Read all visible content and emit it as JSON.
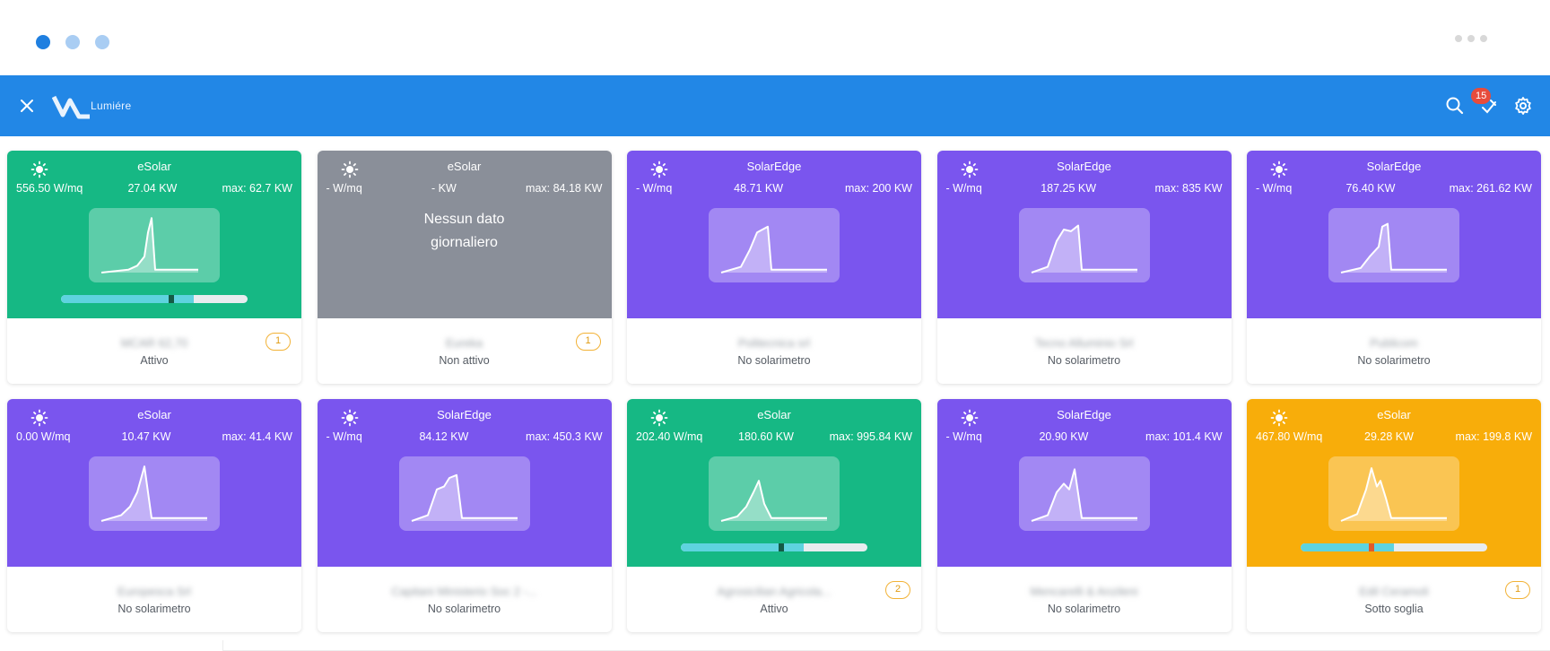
{
  "app": {
    "name": "Lumiére",
    "alert_count": "15"
  },
  "colors": {
    "green": "#16b884",
    "gray": "#8a8f99",
    "purple": "#7a55ee",
    "orange": "#f8ad0a",
    "accent": "#2287e6"
  },
  "cards": [
    {
      "provider": "eSolar",
      "irradiance": "556.50 W/mq",
      "power": "27.04 KW",
      "max": "max: 62.7 KW",
      "client": "MCAR 62,70",
      "status": "Attivo",
      "count": "1",
      "color": "green",
      "nodata": "",
      "progress": {
        "fill_pct": 59,
        "marker_color": "#145a44"
      },
      "curve": [
        [
          0,
          1
        ],
        [
          30,
          0.95
        ],
        [
          40,
          0.88
        ],
        [
          48,
          0.72
        ],
        [
          52,
          0.3
        ],
        [
          56,
          0.05
        ],
        [
          60,
          0.95
        ],
        [
          108,
          0.95
        ]
      ]
    },
    {
      "provider": "eSolar",
      "irradiance": "- W/mq",
      "power": "- KW",
      "max": "max: 84.18 KW",
      "client": "Eureka",
      "status": "Non attivo",
      "count": "1",
      "color": "gray",
      "nodata_line1": "Nessun dato",
      "nodata_line2": "giornaliero"
    },
    {
      "provider": "SolarEdge",
      "irradiance": "- W/mq",
      "power": "48.71 KW",
      "max": "max: 200 KW",
      "client": "Politecnica srl",
      "status": "No solarimetro",
      "count": "",
      "color": "purple",
      "curve": [
        [
          0,
          1
        ],
        [
          22,
          0.9
        ],
        [
          32,
          0.6
        ],
        [
          40,
          0.3
        ],
        [
          52,
          0.2
        ],
        [
          56,
          0.95
        ],
        [
          118,
          0.95
        ]
      ]
    },
    {
      "provider": "SolarEdge",
      "irradiance": "- W/mq",
      "power": "187.25 KW",
      "max": "max: 835 KW",
      "client": "Tecno Alluminio Srl",
      "status": "No solarimetro",
      "count": "",
      "color": "purple",
      "curve": [
        [
          0,
          1
        ],
        [
          18,
          0.9
        ],
        [
          28,
          0.45
        ],
        [
          36,
          0.25
        ],
        [
          44,
          0.28
        ],
        [
          52,
          0.18
        ],
        [
          56,
          0.95
        ],
        [
          118,
          0.95
        ]
      ]
    },
    {
      "provider": "SolarEdge",
      "irradiance": "- W/mq",
      "power": "76.40 KW",
      "max": "max: 261.62 KW",
      "client": "Publicom",
      "status": "No solarimetro",
      "count": "",
      "color": "purple",
      "curve": [
        [
          0,
          1
        ],
        [
          22,
          0.92
        ],
        [
          32,
          0.72
        ],
        [
          42,
          0.55
        ],
        [
          46,
          0.2
        ],
        [
          52,
          0.15
        ],
        [
          56,
          0.95
        ],
        [
          118,
          0.95
        ]
      ]
    },
    {
      "provider": "eSolar",
      "irradiance": "0.00 W/mq",
      "power": "10.47 KW",
      "max": "max: 41.4 KW",
      "client": "Europesca Srl",
      "status": "No solarimetro",
      "count": "",
      "color": "purple",
      "curve": [
        [
          0,
          1
        ],
        [
          22,
          0.9
        ],
        [
          32,
          0.75
        ],
        [
          40,
          0.5
        ],
        [
          48,
          0.05
        ],
        [
          56,
          0.95
        ],
        [
          118,
          0.95
        ]
      ]
    },
    {
      "provider": "SolarEdge",
      "irradiance": "- W/mq",
      "power": "84.12 KW",
      "max": "max: 450.3 KW",
      "client": "Capitani Ministerio Soc 2 -...",
      "status": "No solarimetro",
      "count": "",
      "color": "purple",
      "curve": [
        [
          0,
          1
        ],
        [
          18,
          0.9
        ],
        [
          28,
          0.45
        ],
        [
          36,
          0.4
        ],
        [
          42,
          0.25
        ],
        [
          50,
          0.2
        ],
        [
          56,
          0.95
        ],
        [
          118,
          0.95
        ]
      ]
    },
    {
      "provider": "eSolar",
      "irradiance": "202.40 W/mq",
      "power": "180.60 KW",
      "max": "max: 995.84 KW",
      "client": "Agrosicilian Agricola...",
      "status": "Attivo",
      "count": "2",
      "color": "green",
      "progress": {
        "fill_pct": 54,
        "marker_color": "#145a44"
      },
      "curve": [
        [
          0,
          1
        ],
        [
          18,
          0.92
        ],
        [
          28,
          0.75
        ],
        [
          36,
          0.5
        ],
        [
          42,
          0.3
        ],
        [
          48,
          0.7
        ],
        [
          56,
          0.95
        ],
        [
          118,
          0.95
        ]
      ]
    },
    {
      "provider": "SolarEdge",
      "irradiance": "- W/mq",
      "power": "20.90 KW",
      "max": "max: 101.4 KW",
      "client": "Mencarelli & Anzileni",
      "status": "No solarimetro",
      "count": "",
      "color": "purple",
      "curve": [
        [
          0,
          1
        ],
        [
          18,
          0.9
        ],
        [
          28,
          0.5
        ],
        [
          36,
          0.35
        ],
        [
          42,
          0.45
        ],
        [
          48,
          0.1
        ],
        [
          56,
          0.95
        ],
        [
          118,
          0.95
        ]
      ]
    },
    {
      "provider": "eSolar",
      "irradiance": "467.80 W/mq",
      "power": "29.28 KW",
      "max": "max: 199.8 KW",
      "client": "Edil Ceramoli",
      "status": "Sotto soglia",
      "count": "1",
      "color": "orange",
      "progress": {
        "fill_pct": 38,
        "marker_color": "#e25a2a"
      },
      "curve": [
        [
          0,
          1
        ],
        [
          18,
          0.88
        ],
        [
          28,
          0.45
        ],
        [
          34,
          0.08
        ],
        [
          40,
          0.4
        ],
        [
          44,
          0.3
        ],
        [
          50,
          0.6
        ],
        [
          56,
          0.95
        ],
        [
          118,
          0.95
        ]
      ]
    }
  ]
}
